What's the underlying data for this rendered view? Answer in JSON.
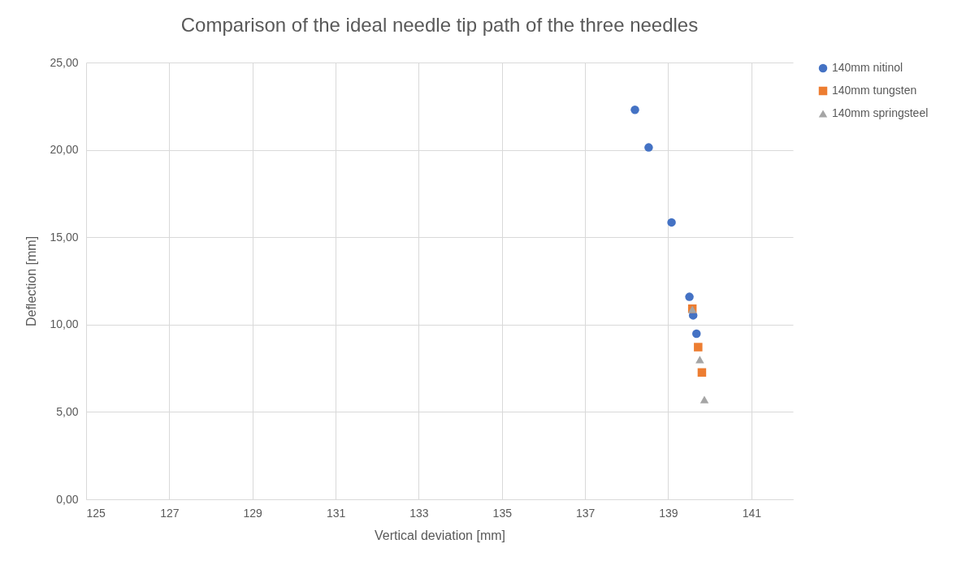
{
  "chart_data": {
    "type": "scatter",
    "title": "Comparison of the ideal needle tip path of the three needles",
    "xlabel": "Vertical deviation [mm]",
    "ylabel": "Deflection [mm]",
    "xlim": [
      125,
      142
    ],
    "xticks": [
      125,
      127,
      129,
      131,
      133,
      135,
      137,
      139,
      141
    ],
    "ylim": [
      0,
      25
    ],
    "yticks": [
      {
        "value": 0,
        "label": "0,00"
      },
      {
        "value": 5,
        "label": "5,00"
      },
      {
        "value": 10,
        "label": "10,00"
      },
      {
        "value": 15,
        "label": "15,00"
      },
      {
        "value": 20,
        "label": "20,00"
      },
      {
        "value": 25,
        "label": "25,00"
      }
    ],
    "grid": true,
    "legend": "right",
    "series": [
      {
        "name": "140mm nitinol",
        "color": "#4472c4",
        "marker": "circle",
        "x": [
          138.2,
          138.53,
          139.08,
          139.51,
          139.6,
          139.68
        ],
        "values": [
          22.29,
          20.14,
          15.85,
          11.59,
          10.53,
          9.48
        ]
      },
      {
        "name": "140mm tungsten",
        "color": "#ed7d31",
        "marker": "square",
        "x": [
          139.58,
          139.72,
          139.81
        ],
        "values": [
          10.91,
          8.71,
          7.26
        ]
      },
      {
        "name": "140mm springsteel",
        "color": "#a5a5a5",
        "marker": "triangle",
        "x": [
          139.58,
          139.76,
          139.87
        ],
        "values": [
          10.87,
          8.0,
          5.71
        ]
      }
    ]
  }
}
